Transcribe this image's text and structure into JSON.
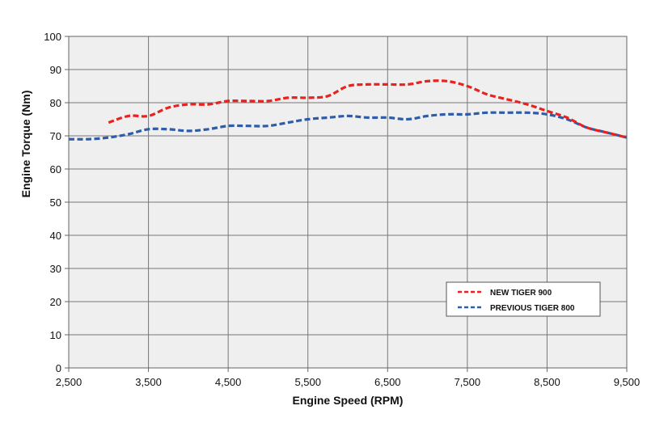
{
  "chart_data": {
    "type": "line",
    "xlabel": "Engine Speed (RPM)",
    "ylabel": "Engine Torque (Nm)",
    "xlim": [
      2500,
      9500
    ],
    "ylim": [
      0,
      100
    ],
    "x_ticks": [
      2500,
      3500,
      4500,
      5500,
      6500,
      7500,
      8500,
      9500
    ],
    "x_tick_labels": [
      "2,500",
      "3,500",
      "4,500",
      "5,500",
      "6,500",
      "7,500",
      "8,500",
      "9,500"
    ],
    "y_ticks": [
      0,
      10,
      20,
      30,
      40,
      50,
      60,
      70,
      80,
      90,
      100
    ],
    "y_tick_labels": [
      "0",
      "10",
      "20",
      "30",
      "40",
      "50",
      "60",
      "70",
      "80",
      "90",
      "100"
    ],
    "grid": true,
    "legend_position": "bottom-right",
    "plot_background": "#efefef",
    "series": [
      {
        "name": "NEW TIGER 900",
        "color": "#e8221e",
        "line_style": "dashed",
        "x": [
          3000,
          3250,
          3500,
          3750,
          4000,
          4250,
          4500,
          4750,
          5000,
          5250,
          5500,
          5750,
          6000,
          6250,
          6500,
          6750,
          7000,
          7250,
          7500,
          7750,
          8000,
          8250,
          8500,
          8750,
          9000,
          9250,
          9500
        ],
        "y": [
          74,
          76,
          76,
          78.5,
          79.5,
          79.5,
          80.5,
          80.5,
          80.5,
          81.5,
          81.5,
          82,
          85,
          85.5,
          85.5,
          85.5,
          86.5,
          86.5,
          85,
          82.5,
          81,
          79.5,
          77.5,
          75.5,
          72.5,
          71,
          69.5
        ]
      },
      {
        "name": "PREVIOUS TIGER 800",
        "color": "#2e5ca8",
        "line_style": "dashed",
        "x": [
          2500,
          2750,
          3000,
          3250,
          3500,
          3750,
          4000,
          4250,
          4500,
          4750,
          5000,
          5250,
          5500,
          5750,
          6000,
          6250,
          6500,
          6750,
          7000,
          7250,
          7500,
          7750,
          8000,
          8250,
          8500,
          8750,
          9000,
          9250,
          9500
        ],
        "y": [
          69,
          69,
          69.5,
          70.5,
          72,
          72,
          71.5,
          72,
          73,
          73,
          73,
          74,
          75,
          75.5,
          76,
          75.5,
          75.5,
          75,
          76,
          76.5,
          76.5,
          77,
          77,
          77,
          76.5,
          75,
          72.5,
          71,
          69.5
        ]
      }
    ]
  }
}
